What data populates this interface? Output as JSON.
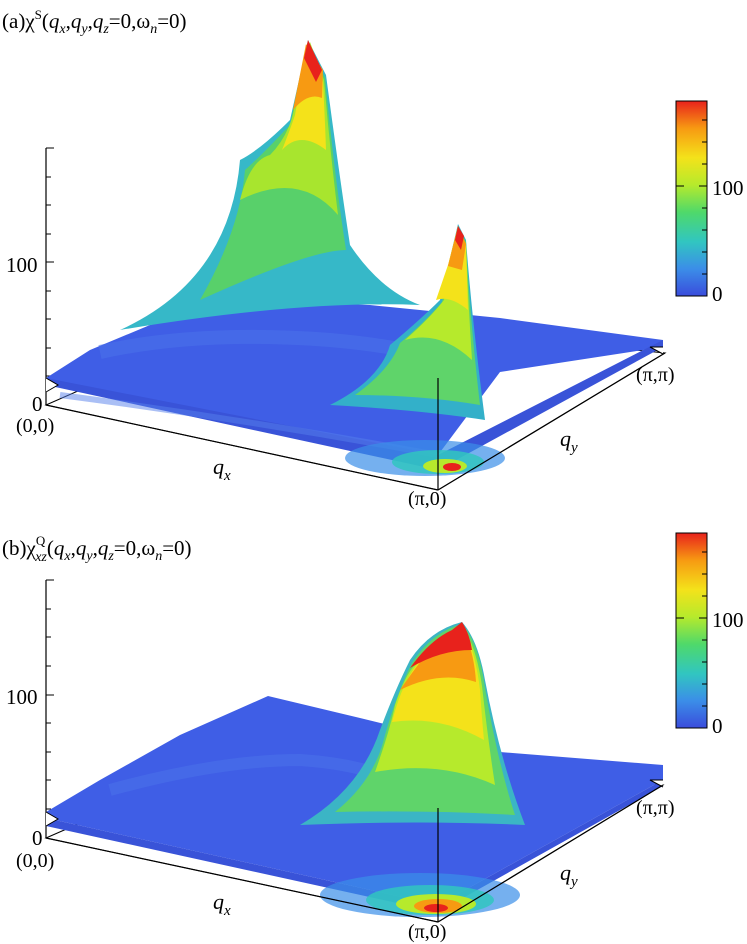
{
  "panels": [
    {
      "label_prefix": "(a)",
      "label_chi": "χ",
      "label_sup": "S",
      "label_sub": "",
      "label_args": "(q_x,q_y,q_z=0,ω_n=0)",
      "z_tick_labels": [
        "0",
        "100"
      ],
      "corner_origin": "(0,0)",
      "corner_xend": "(π,0)",
      "corner_yend": "(π,π)",
      "x_axis_label": "q",
      "x_axis_sub": "x",
      "y_axis_label": "q",
      "y_axis_sub": "y",
      "colorbar_ticks": [
        "0",
        "100"
      ]
    },
    {
      "label_prefix": "(b)",
      "label_chi": "χ",
      "label_sup": "Q",
      "label_sub": "xz",
      "label_args": "(q_x,q_y,q_z=0,ω_n=0)",
      "z_tick_labels": [
        "0",
        "100"
      ],
      "corner_origin": "(0,0)",
      "corner_xend": "(π,0)",
      "corner_yend": "(π,π)",
      "x_axis_label": "q",
      "x_axis_sub": "x",
      "y_axis_label": "q",
      "y_axis_sub": "y",
      "colorbar_ticks": [
        "0",
        "100"
      ]
    }
  ],
  "colormap": [
    "#3a4cdc",
    "#3b8ee8",
    "#31c6c0",
    "#4fd96a",
    "#b6ea2c",
    "#f4e21a",
    "#f79a12",
    "#e8221c"
  ],
  "chart_data": [
    {
      "type": "surface3d",
      "title": "(a)χS(qx,qy,qz=0,ωn=0)",
      "x_range": [
        "0",
        "π"
      ],
      "y_range": [
        "0",
        "π"
      ],
      "z_ticks": [
        0,
        100
      ],
      "colorbar_ticks": [
        0,
        100
      ],
      "colorbar_range": [
        0,
        180
      ],
      "peaks": [
        {
          "qx": 0.05,
          "qy": "π",
          "value": 175
        },
        {
          "qx": "π",
          "qy": 0.75,
          "value": 150
        }
      ],
      "background_value": 20,
      "corner_value_qx_pi_qy_0": 160
    },
    {
      "type": "surface3d",
      "title": "(b)χQxz(qx,qy,qz=0,ωn=0)",
      "x_range": [
        "0",
        "π"
      ],
      "y_range": [
        "0",
        "π"
      ],
      "z_ticks": [
        0,
        100
      ],
      "colorbar_ticks": [
        0,
        100
      ],
      "colorbar_range": [
        0,
        180
      ],
      "peaks": [
        {
          "qx": "π",
          "qy": 0.3,
          "value": 175
        }
      ],
      "background_value": 20,
      "corner_value_qx_pi_qy_0": 175
    }
  ]
}
